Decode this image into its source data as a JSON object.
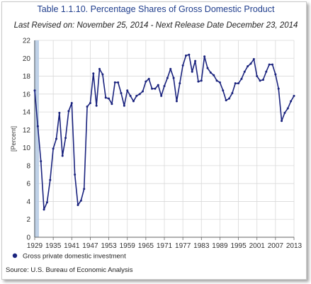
{
  "chart_data": {
    "type": "line",
    "title": "Table 1.1.10. Percentage Shares of Gross Domestic Product",
    "subtitle": "Last Revised on: November 25, 2014 - Next Release Date December 23, 2014",
    "xlabel": "",
    "ylabel": "[Percent]",
    "xlim": [
      1929,
      2013
    ],
    "ylim": [
      0,
      22
    ],
    "x_ticks": [
      1929,
      1935,
      1941,
      1947,
      1953,
      1959,
      1965,
      1971,
      1977,
      1983,
      1989,
      1995,
      2001,
      2007,
      2013
    ],
    "y_ticks": [
      0,
      2,
      4,
      6,
      8,
      10,
      12,
      14,
      16,
      18,
      20,
      22
    ],
    "grid": true,
    "legend": "bottom-left",
    "series": [
      {
        "name": "Gross private domestic investment",
        "color": "#1a237e",
        "x": [
          1929,
          1930,
          1931,
          1932,
          1933,
          1934,
          1935,
          1936,
          1937,
          1938,
          1939,
          1940,
          1941,
          1942,
          1943,
          1944,
          1945,
          1946,
          1947,
          1948,
          1949,
          1950,
          1951,
          1952,
          1953,
          1954,
          1955,
          1956,
          1957,
          1958,
          1959,
          1960,
          1961,
          1962,
          1963,
          1964,
          1965,
          1966,
          1967,
          1968,
          1969,
          1970,
          1971,
          1972,
          1973,
          1974,
          1975,
          1976,
          1977,
          1978,
          1979,
          1980,
          1981,
          1982,
          1983,
          1984,
          1985,
          1986,
          1987,
          1988,
          1989,
          1990,
          1991,
          1992,
          1993,
          1994,
          1995,
          1996,
          1997,
          1998,
          1999,
          2000,
          2001,
          2002,
          2003,
          2004,
          2005,
          2006,
          2007,
          2008,
          2009,
          2010,
          2011,
          2012,
          2013
        ],
        "values": [
          16.4,
          12.4,
          8.5,
          3.1,
          3.9,
          6.4,
          9.9,
          11.0,
          13.9,
          9.1,
          11.1,
          14.1,
          15.0,
          7.0,
          3.6,
          4.1,
          5.4,
          14.6,
          15.0,
          18.3,
          14.7,
          18.8,
          18.2,
          15.6,
          15.5,
          14.9,
          17.3,
          17.3,
          16.1,
          14.7,
          16.4,
          15.8,
          15.2,
          15.8,
          16.0,
          16.3,
          17.4,
          17.7,
          16.6,
          16.6,
          17.0,
          15.8,
          16.9,
          17.8,
          18.8,
          17.8,
          15.2,
          17.2,
          19.2,
          20.3,
          20.4,
          18.5,
          19.7,
          17.4,
          17.5,
          20.2,
          18.9,
          18.4,
          18.1,
          17.5,
          17.3,
          16.4,
          15.3,
          15.5,
          16.1,
          17.2,
          17.2,
          17.7,
          18.5,
          19.1,
          19.4,
          19.9,
          18.0,
          17.5,
          17.6,
          18.5,
          19.3,
          19.3,
          18.2,
          16.6,
          13.0,
          13.9,
          14.4,
          15.2,
          15.8
        ]
      }
    ]
  },
  "legend_label": "Gross private domestic investment",
  "source_text": "Source: U.S. Bureau of Economic  Analysis",
  "colors": {
    "title": "#1f3d8c",
    "line": "#1a237e",
    "recession_band": "#b8cce4",
    "grid": "#d9d9d9"
  }
}
